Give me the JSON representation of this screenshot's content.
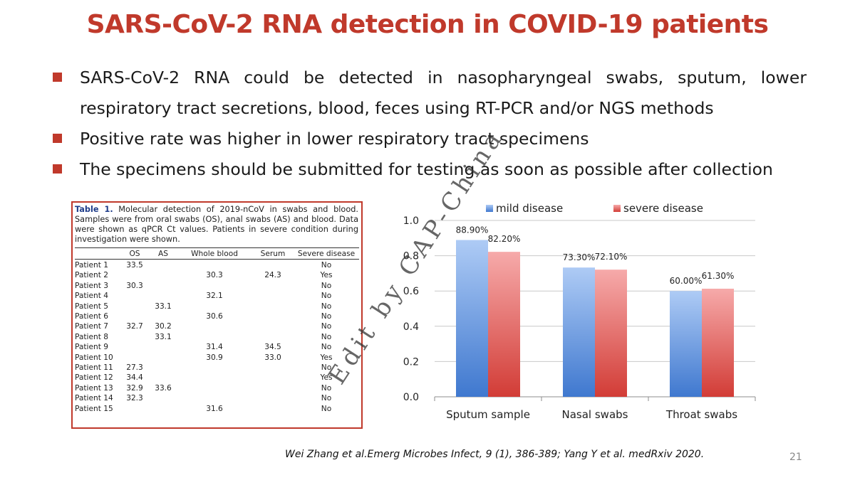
{
  "slide": {
    "title": "SARS-CoV-2 RNA detection in COVID-19 patients",
    "bullets": [
      "SARS-CoV-2 RNA could be detected in nasopharyngeal swabs, sputum, lower respiratory tract secretions, blood, feces using RT-PCR and/or NGS methods",
      "Positive rate was higher in lower respiratory tract specimens",
      "The specimens should be submitted for testing as soon as possible after collection"
    ],
    "watermark": "Edit by CAP-China",
    "citation": "Wei Zhang et al.Emerg Microbes Infect, 9 (1), 386-389; Yang Y et al. medRxiv 2020.",
    "page_number": "21",
    "accent_color": "#c0392b"
  },
  "table": {
    "caption_label": "Table 1.",
    "caption_text": "Molecular detection of 2019-nCoV in swabs and blood. Samples were from oral swabs (OS), anal swabs (AS) and blood. Data were shown as qPCR Ct values. Patients in severe condition during investigation were shown.",
    "columns": [
      "",
      "OS",
      "AS",
      "Whole blood",
      "Serum",
      "Severe disease"
    ],
    "rows": [
      [
        "Patient 1",
        "33.5",
        "",
        "",
        "",
        "No"
      ],
      [
        "Patient 2",
        "",
        "",
        "30.3",
        "24.3",
        "Yes"
      ],
      [
        "Patient 3",
        "30.3",
        "",
        "",
        "",
        "No"
      ],
      [
        "Patient 4",
        "",
        "",
        "32.1",
        "",
        "No"
      ],
      [
        "Patient 5",
        "",
        "33.1",
        "",
        "",
        "No"
      ],
      [
        "Patient 6",
        "",
        "",
        "30.6",
        "",
        "No"
      ],
      [
        "Patient 7",
        "32.7",
        "30.2",
        "",
        "",
        "No"
      ],
      [
        "Patient 8",
        "",
        "33.1",
        "",
        "",
        "No"
      ],
      [
        "Patient 9",
        "",
        "",
        "31.4",
        "34.5",
        "No"
      ],
      [
        "Patient 10",
        "",
        "",
        "30.9",
        "33.0",
        "Yes"
      ],
      [
        "Patient 11",
        "27.3",
        "",
        "",
        "",
        "No"
      ],
      [
        "Patient 12",
        "34.4",
        "",
        "",
        "",
        "Yes"
      ],
      [
        "Patient 13",
        "32.9",
        "33.6",
        "",
        "",
        "No"
      ],
      [
        "Patient 14",
        "32.3",
        "",
        "",
        "",
        "No"
      ],
      [
        "Patient 15",
        "",
        "",
        "31.6",
        "",
        "No"
      ]
    ]
  },
  "chart_data": {
    "type": "bar",
    "categories": [
      "Sputum sample",
      "Nasal swabs",
      "Throat swabs"
    ],
    "series": [
      {
        "name": "mild disease",
        "values": [
          0.889,
          0.733,
          0.6
        ],
        "labels": [
          "88.90%",
          "73.30%",
          "60.00%"
        ],
        "color": "#5b8fd6"
      },
      {
        "name": "severe disease",
        "values": [
          0.822,
          0.721,
          0.613
        ],
        "labels": [
          "82.20%",
          "72.10%",
          "61.30%"
        ],
        "color": "#d9534f"
      }
    ],
    "ylim": [
      0,
      1.0
    ],
    "yticks": [
      "0.0",
      "0.2",
      "0.4",
      "0.6",
      "0.8",
      "1.0"
    ],
    "grid": true,
    "legend": "top"
  }
}
